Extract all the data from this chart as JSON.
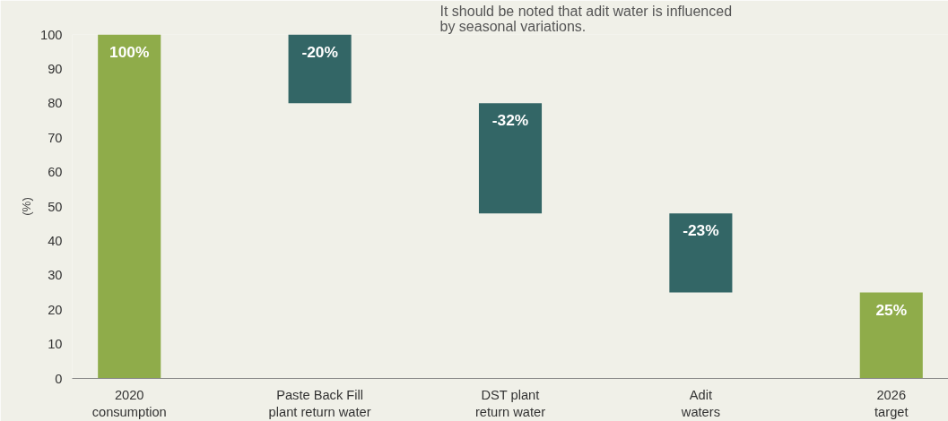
{
  "chart_data": {
    "type": "bar",
    "ylabel": "(%)",
    "categories": [
      "2020\nconsumption",
      "Paste Back Fill\nplant return water",
      "DST plant\nreturn water",
      "Adit\nwaters",
      "2026\ntarget"
    ],
    "values": [
      100,
      -20,
      -32,
      -23,
      25
    ],
    "base": [
      0,
      100,
      80,
      48,
      0
    ],
    "colors": [
      "#8fac4a",
      "#336666",
      "#336666",
      "#336666",
      "#8fac4a"
    ],
    "value_labels": [
      "100%",
      "-20%",
      "-32%",
      "-23%",
      "25%"
    ],
    "ylim": [
      0,
      100
    ],
    "yticks": [
      0,
      10,
      20,
      30,
      40,
      50,
      60,
      70,
      80,
      90,
      100
    ],
    "grid": false,
    "annotations": [
      "It should be noted that adit water is influenced\nby seasonal variations."
    ]
  }
}
